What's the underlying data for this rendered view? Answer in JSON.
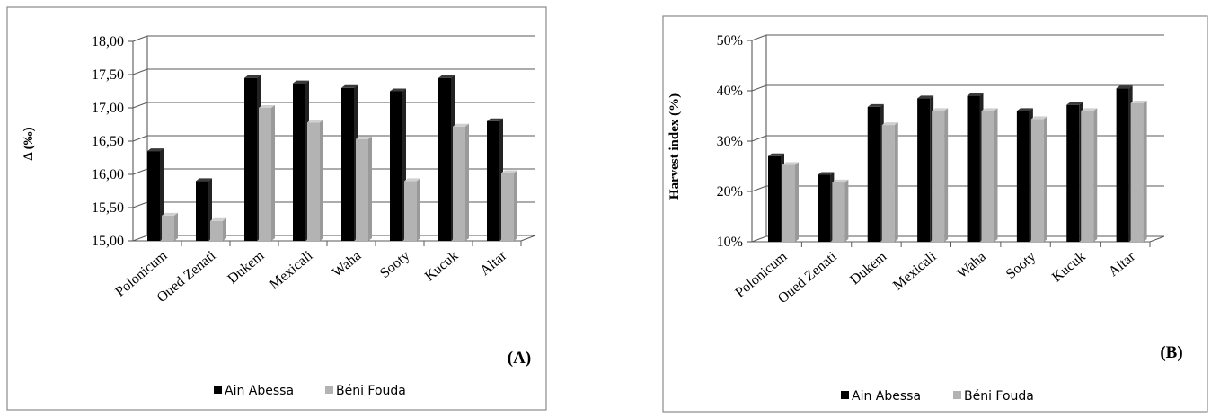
{
  "colors": {
    "series1": "#000000",
    "series2": "#b3b3b3",
    "grid": "#5a5a5a",
    "frame": "#8a8a8a"
  },
  "chart_data": [
    {
      "type": "bar",
      "panel_label": "(A)",
      "ylabel": "Δ (‰)",
      "categories": [
        "Polonicum",
        "Oued Zenati",
        "Dukem",
        "Mexicali",
        "Waha",
        "Sooty",
        "Kucuk",
        "Altar"
      ],
      "series": [
        {
          "name": "Ain Abessa",
          "values": [
            16.35,
            15.9,
            17.45,
            17.37,
            17.3,
            17.25,
            17.45,
            16.8
          ]
        },
        {
          "name": "Béni Fouda",
          "values": [
            15.38,
            15.3,
            17.0,
            16.78,
            16.53,
            15.9,
            16.72,
            16.02
          ]
        }
      ],
      "ylim": [
        15.0,
        18.0
      ],
      "yticks": [
        15.0,
        15.5,
        16.0,
        16.5,
        17.0,
        17.5,
        18.0
      ],
      "ytick_labels": [
        "15,00",
        "15,50",
        "16,00",
        "16,50",
        "17,00",
        "17,50",
        "18,00"
      ],
      "grid": true,
      "legend_position": "bottom"
    },
    {
      "type": "bar",
      "panel_label": "(B)",
      "ylabel": "Harvest index (%)",
      "categories": [
        "Polonicum",
        "Oued Zenati",
        "Dukem",
        "Mexicali",
        "Waha",
        "Sooty",
        "Kucuk",
        "Altar"
      ],
      "series": [
        {
          "name": "Ain Abessa",
          "values": [
            27.0,
            23.3,
            36.8,
            38.5,
            39.0,
            36.0,
            37.2,
            40.5
          ]
        },
        {
          "name": "Béni Fouda",
          "values": [
            25.3,
            21.8,
            33.2,
            36.0,
            36.0,
            34.4,
            36.0,
            37.5
          ]
        }
      ],
      "ylim": [
        10,
        50
      ],
      "yticks": [
        10,
        20,
        30,
        40,
        50
      ],
      "ytick_labels": [
        "10%",
        "20%",
        "30%",
        "40%",
        "50%"
      ],
      "grid": true,
      "legend_position": "bottom"
    }
  ]
}
